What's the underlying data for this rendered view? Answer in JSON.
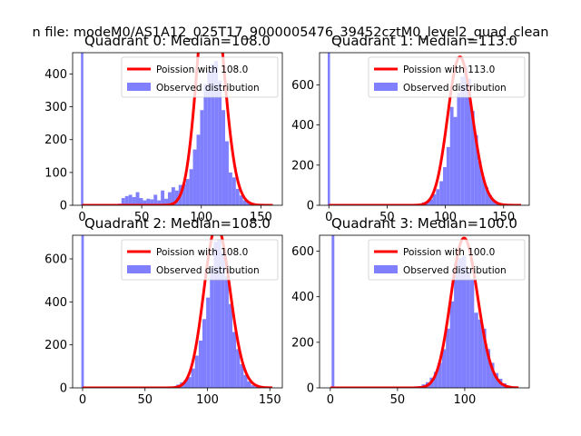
{
  "figure": {
    "suptitle": "n file: modeM0/AS1A12_025T17_9000005476_39452cztM0_level2_quad_clean"
  },
  "colors": {
    "poisson_line": "#ff0000",
    "observed_bar": "#8080ff",
    "axes": "#000000",
    "background": "#ffffff"
  },
  "chart_data": [
    {
      "type": "bar",
      "title": "Quadrant 0: Median=108.0",
      "xlim": [
        -8,
        168
      ],
      "ylim": [
        0,
        465
      ],
      "xticks": [
        0,
        50,
        100,
        150
      ],
      "yticks": [
        0,
        100,
        200,
        300,
        400
      ],
      "legend": [
        "Poission with 108.0",
        "Observed distribution"
      ],
      "legend_position": "upper right",
      "poisson_mean": 108,
      "poisson_scale": 19700,
      "poisson_x_range": [
        0,
        160
      ],
      "bins": [
        [
          -1,
          1,
          465
        ],
        [
          30,
          33,
          5
        ],
        [
          33,
          36,
          22
        ],
        [
          36,
          39,
          28
        ],
        [
          39,
          42,
          32
        ],
        [
          42,
          45,
          25
        ],
        [
          45,
          48,
          40
        ],
        [
          48,
          51,
          22
        ],
        [
          51,
          54,
          15
        ],
        [
          54,
          57,
          20
        ],
        [
          57,
          60,
          18
        ],
        [
          60,
          63,
          32
        ],
        [
          63,
          66,
          15
        ],
        [
          66,
          69,
          45
        ],
        [
          69,
          72,
          20
        ],
        [
          72,
          75,
          40
        ],
        [
          75,
          78,
          55
        ],
        [
          78,
          81,
          45
        ],
        [
          81,
          84,
          62
        ],
        [
          84,
          87,
          65
        ],
        [
          87,
          90,
          80
        ],
        [
          90,
          93,
          110
        ],
        [
          93,
          96,
          170
        ],
        [
          96,
          99,
          215
        ],
        [
          99,
          102,
          290
        ],
        [
          102,
          105,
          370
        ],
        [
          105,
          108,
          410
        ],
        [
          108,
          111,
          430
        ],
        [
          111,
          114,
          440
        ],
        [
          114,
          117,
          380
        ],
        [
          117,
          120,
          290
        ],
        [
          120,
          123,
          195
        ],
        [
          123,
          126,
          100
        ],
        [
          126,
          129,
          85
        ],
        [
          129,
          132,
          50
        ],
        [
          132,
          135,
          30
        ],
        [
          135,
          138,
          15
        ],
        [
          138,
          141,
          8
        ],
        [
          141,
          144,
          5
        ]
      ]
    },
    {
      "type": "bar",
      "title": "Quadrant 1: Median=113.0",
      "xlim": [
        -8,
        172
      ],
      "ylim": [
        0,
        760
      ],
      "xticks": [
        0,
        50,
        100,
        150
      ],
      "yticks": [
        0,
        200,
        400,
        600
      ],
      "legend": [
        "Poission with 113.0",
        "Observed distribution"
      ],
      "legend_position": "upper right",
      "poisson_mean": 113,
      "poisson_scale": 19700,
      "poisson_x_range": [
        0,
        165
      ],
      "bins": [
        [
          -1,
          1,
          760
        ],
        [
          80,
          83,
          15
        ],
        [
          83,
          86,
          20
        ],
        [
          86,
          89,
          30
        ],
        [
          89,
          92,
          55
        ],
        [
          92,
          95,
          80
        ],
        [
          95,
          98,
          120
        ],
        [
          98,
          101,
          190
        ],
        [
          101,
          104,
          290
        ],
        [
          104,
          107,
          490
        ],
        [
          107,
          110,
          440
        ],
        [
          110,
          113,
          560
        ],
        [
          113,
          116,
          640
        ],
        [
          116,
          119,
          690
        ],
        [
          119,
          122,
          630
        ],
        [
          122,
          125,
          470
        ],
        [
          125,
          128,
          350
        ],
        [
          128,
          131,
          220
        ],
        [
          131,
          134,
          140
        ],
        [
          134,
          137,
          90
        ],
        [
          137,
          140,
          50
        ],
        [
          140,
          143,
          25
        ],
        [
          143,
          146,
          10
        ],
        [
          146,
          149,
          5
        ]
      ]
    },
    {
      "type": "bar",
      "title": "Quadrant 2: Median=108.0",
      "xlim": [
        -8,
        160
      ],
      "ylim": [
        0,
        710
      ],
      "xticks": [
        0,
        50,
        100,
        150
      ],
      "yticks": [
        0,
        200,
        400,
        600
      ],
      "legend": [
        "Poission with 108.0",
        "Observed distribution"
      ],
      "legend_position": "upper right",
      "poisson_mean": 108,
      "poisson_scale": 19700,
      "poisson_x_range": [
        0,
        152
      ],
      "bins": [
        [
          -1,
          1,
          710
        ],
        [
          75,
          78,
          15
        ],
        [
          78,
          81,
          25
        ],
        [
          81,
          84,
          35
        ],
        [
          84,
          87,
          50
        ],
        [
          87,
          90,
          90
        ],
        [
          90,
          93,
          150
        ],
        [
          93,
          96,
          220
        ],
        [
          96,
          99,
          320
        ],
        [
          99,
          102,
          420
        ],
        [
          102,
          105,
          560
        ],
        [
          105,
          108,
          680
        ],
        [
          108,
          111,
          690
        ],
        [
          111,
          114,
          630
        ],
        [
          114,
          117,
          520
        ],
        [
          117,
          120,
          390
        ],
        [
          120,
          123,
          260
        ],
        [
          123,
          126,
          180
        ],
        [
          126,
          129,
          110
        ],
        [
          129,
          132,
          60
        ],
        [
          132,
          135,
          30
        ],
        [
          135,
          138,
          12
        ],
        [
          138,
          141,
          5
        ]
      ]
    },
    {
      "type": "bar",
      "title": "Quadrant 3: Median=100.0",
      "xlim": [
        -8,
        148
      ],
      "ylim": [
        0,
        670
      ],
      "xticks": [
        0,
        50,
        100
      ],
      "yticks": [
        0,
        200,
        400,
        600
      ],
      "legend": [
        "Poission with 100.0",
        "Observed distribution"
      ],
      "legend_position": "upper right",
      "poisson_mean": 100,
      "poisson_scale": 16500,
      "poisson_x_range": [
        0,
        140
      ],
      "bins": [
        [
          1,
          3,
          670
        ],
        [
          65,
          68,
          8
        ],
        [
          68,
          71,
          15
        ],
        [
          71,
          74,
          25
        ],
        [
          74,
          77,
          45
        ],
        [
          77,
          80,
          70
        ],
        [
          80,
          83,
          110
        ],
        [
          83,
          86,
          170
        ],
        [
          86,
          89,
          260
        ],
        [
          89,
          92,
          380
        ],
        [
          92,
          95,
          550
        ],
        [
          95,
          98,
          570
        ],
        [
          98,
          101,
          580
        ],
        [
          101,
          104,
          520
        ],
        [
          104,
          107,
          480
        ],
        [
          107,
          110,
          330
        ],
        [
          110,
          113,
          300
        ],
        [
          113,
          116,
          260
        ],
        [
          116,
          119,
          170
        ],
        [
          119,
          122,
          110
        ],
        [
          122,
          125,
          65
        ],
        [
          125,
          128,
          40
        ],
        [
          128,
          131,
          20
        ],
        [
          131,
          134,
          10
        ],
        [
          134,
          137,
          5
        ]
      ]
    }
  ]
}
